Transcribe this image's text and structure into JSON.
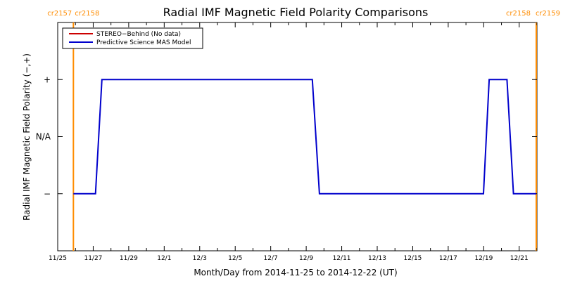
{
  "chart_data": {
    "type": "line",
    "title": "Radial IMF Magnetic Field Polarity Comparisons",
    "xlabel": "Month/Day from 2014-11-25 to 2014-12-22 (UT)",
    "ylabel": "Radial IMF Magnetic Field Polarity (−,+)",
    "x_range_days": [
      0,
      27
    ],
    "xlim_dates": [
      "2014-11-25",
      "2014-12-22"
    ],
    "x_tick_labels": [
      "11/25",
      "11/27",
      "11/29",
      "12/1",
      "12/3",
      "12/5",
      "12/7",
      "12/9",
      "12/11",
      "12/13",
      "12/15",
      "12/17",
      "12/19",
      "12/21"
    ],
    "y_ticks": [
      {
        "value": 1,
        "label": "+"
      },
      {
        "value": 0,
        "label": "N/A"
      },
      {
        "value": -1,
        "label": "−"
      }
    ],
    "ylim": [
      -2,
      2
    ],
    "carrington_markers": [
      {
        "x": "2014-11-25T22:00",
        "left_label": "cr2157",
        "right_label": "cr2158",
        "color": "#ff8c00"
      },
      {
        "x": "2014-12-22T23:00",
        "left_label": "cr2158",
        "right_label": "cr2159",
        "color": "#ff8c00"
      }
    ],
    "legend": {
      "position": "top-left",
      "entries": [
        {
          "label": "STEREO−Behind (No data)",
          "color": "#cc0000"
        },
        {
          "label": "Predictive Science MAS Model",
          "color": "#0000cc"
        }
      ]
    },
    "series": [
      {
        "name": "Predictive Science MAS Model",
        "color": "#0000cc",
        "points": [
          [
            "2014-11-25T22:00",
            -1
          ],
          [
            "2014-11-27T05:00",
            -1
          ],
          [
            "2014-11-27T14:00",
            1
          ],
          [
            "2014-12-09T21:00",
            1
          ],
          [
            "2014-12-10T07:00",
            -1
          ],
          [
            "2014-12-19T21:00",
            -1
          ],
          [
            "2014-12-20T05:00",
            1
          ],
          [
            "2014-12-21T06:00",
            1
          ],
          [
            "2014-12-21T15:00",
            -1
          ],
          [
            "2014-12-22T23:00",
            -1
          ]
        ]
      },
      {
        "name": "STEREO−Behind (No data)",
        "color": "#cc0000",
        "points": []
      }
    ]
  }
}
